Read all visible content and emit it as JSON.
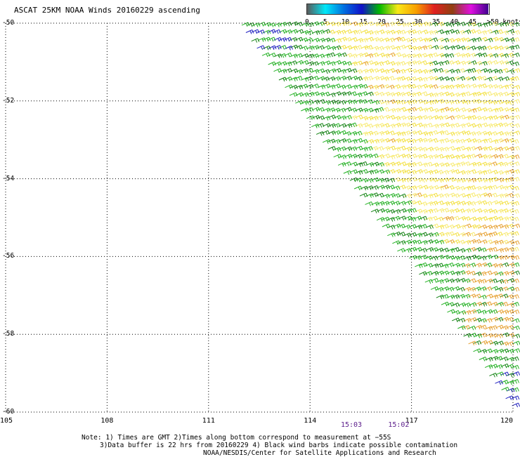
{
  "title": "ASCAT 25KM NOAA Winds 20160229 ascending",
  "colorbar": {
    "bins": [
      {
        "label": "0",
        "color": "#5a5a5a"
      },
      {
        "label": "5",
        "color": "#00e8f8"
      },
      {
        "label": "10",
        "color": "#0070e0"
      },
      {
        "label": "15",
        "color": "#1010c8"
      },
      {
        "label": "20",
        "color": "#00b800"
      },
      {
        "label": "25",
        "color": "#f8e818"
      },
      {
        "label": "30",
        "color": "#f8a000"
      },
      {
        "label": "35",
        "color": "#e02020"
      },
      {
        "label": "40",
        "color": "#904010"
      },
      {
        "label": "45",
        "color": "#e010e0"
      },
      {
        "label": ">50 knots",
        "color": "#400090"
      }
    ]
  },
  "chart_data": {
    "type": "scatter",
    "title": "ASCAT 25KM NOAA Winds 20160229 ascending",
    "x_ticks": [
      "105",
      "108",
      "111",
      "114",
      "117",
      "120"
    ],
    "y_ticks": [
      "-50",
      "-52",
      "-54",
      "-56",
      "-58",
      "-60"
    ],
    "xlim": [
      105,
      120
    ],
    "ylim": [
      -60,
      -50
    ],
    "grid": true,
    "swath": {
      "edge_start": [
        111.8,
        -50.0
      ],
      "edge_end": [
        120.0,
        -60.0
      ],
      "note": "wind barbs fill the area to the right of the swath edge"
    },
    "wind_regions": [
      {
        "color": "#22b022",
        "speed_knots": "15-20",
        "area": "left edge of swath"
      },
      {
        "color": "#f2e040",
        "speed_knots": "20-25",
        "area": "swath interior"
      },
      {
        "color": "#e6a030",
        "speed_knots": "25-30",
        "area": "east near 119-120, -55 to -58"
      },
      {
        "color": "#2020c0",
        "speed_knots": "10-15",
        "area": "scattered, near -50.3 and -59.5"
      }
    ],
    "time_labels": [
      {
        "x": 115.2,
        "label": "15:03"
      },
      {
        "x": 116.6,
        "label": "15:02"
      }
    ]
  },
  "notes": [
    "Note: 1) Times are GMT 2)Times along bottom correspond to measurement at −55S",
    "3)Data buffer is 22 hrs from 20160229 4) Black wind barbs indicate possible contamination",
    "NOAA/NESDIS/Center for Satellite Applications and Research"
  ]
}
